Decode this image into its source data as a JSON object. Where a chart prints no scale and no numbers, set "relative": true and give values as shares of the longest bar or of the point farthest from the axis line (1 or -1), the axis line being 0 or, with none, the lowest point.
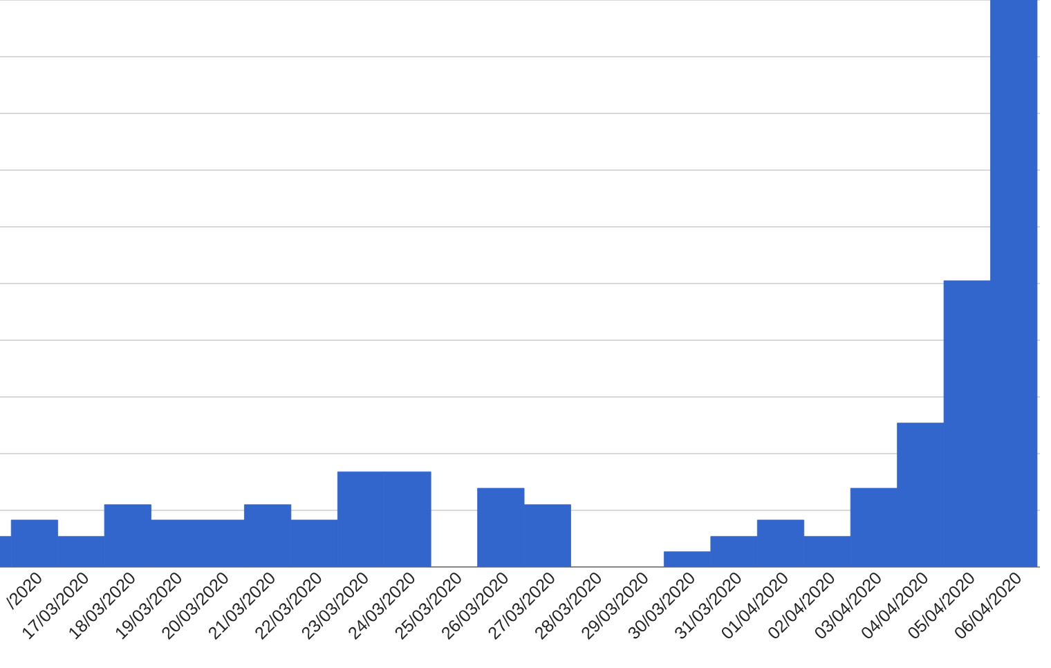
{
  "chart_data": {
    "type": "bar",
    "relative": true,
    "grid": "y",
    "color": "#3366cc",
    "categories": [
      null,
      "/2020",
      "17/03/2020",
      "18/03/2020",
      "19/03/2020",
      "20/03/2020",
      "21/03/2020",
      "22/03/2020",
      "23/03/2020",
      "24/03/2020",
      "25/03/2020",
      "26/03/2020",
      "27/03/2020",
      "28/03/2020",
      "29/03/2020",
      "30/03/2020",
      "31/03/2020",
      "01/04/2020",
      "02/04/2020",
      "03/04/2020",
      "04/04/2020",
      "05/04/2020",
      "06/04/2020"
    ],
    "values": [
      0.054,
      0.083,
      0.054,
      0.11,
      0.083,
      0.083,
      0.11,
      0.083,
      0.168,
      0.168,
      0,
      0.139,
      0.11,
      0,
      0,
      0.027,
      0.054,
      0.083,
      0.054,
      0.139,
      0.254,
      0.505,
      1
    ]
  }
}
